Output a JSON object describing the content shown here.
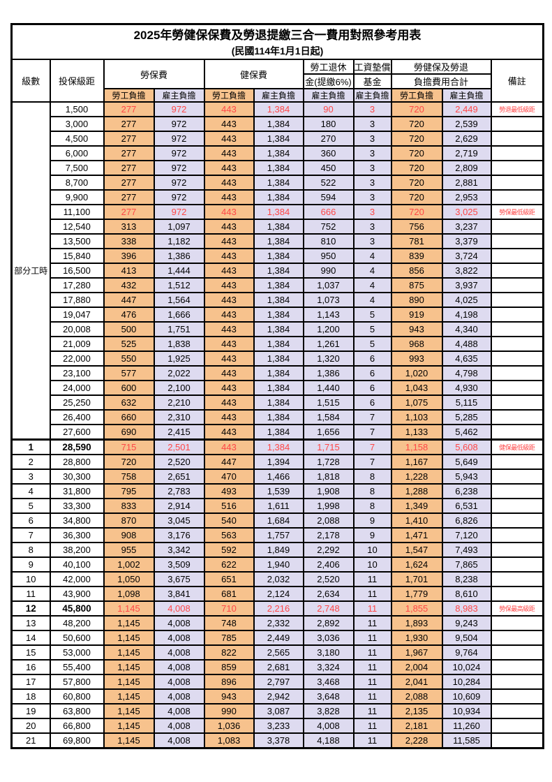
{
  "title": "2025年勞健保保費及勞退提繳三合一費用對照參考用表",
  "subtitle": "(民國114年1月1日起)",
  "colors": {
    "employee_bg": "#F7C28D",
    "employer_bg": "#DEDBF0",
    "highlight_text": "#FF4747",
    "border": "#000000"
  },
  "header": {
    "level": "級數",
    "bracket": "投保級距",
    "labor_group": "勞保費",
    "health_group": "健保費",
    "pension_line1": "勞工退休",
    "pension_line2": "金(提繳6%)",
    "arrears_line1": "工資墊償",
    "arrears_line2": "基金",
    "total_line1": "勞健保及勞退",
    "total_line2": "負擔費用合計",
    "employee": "勞工負擔",
    "employer": "雇主負擔",
    "remark": "備註"
  },
  "part_time_label": "部分工時",
  "part_time_span": 23,
  "rows": [
    {
      "level": "",
      "bracket": "1,500",
      "values": [
        "277",
        "972",
        "443",
        "1,384",
        "90",
        "3",
        "720",
        "2,449"
      ],
      "remark": "勞退最低級距",
      "highlight": true,
      "bold": false,
      "thick_top": false
    },
    {
      "level": "",
      "bracket": "3,000",
      "values": [
        "277",
        "972",
        "443",
        "1,384",
        "180",
        "3",
        "720",
        "2,539"
      ],
      "remark": "",
      "highlight": false,
      "bold": false,
      "thick_top": false
    },
    {
      "level": "",
      "bracket": "4,500",
      "values": [
        "277",
        "972",
        "443",
        "1,384",
        "270",
        "3",
        "720",
        "2,629"
      ],
      "remark": "",
      "highlight": false,
      "bold": false,
      "thick_top": false
    },
    {
      "level": "",
      "bracket": "6,000",
      "values": [
        "277",
        "972",
        "443",
        "1,384",
        "360",
        "3",
        "720",
        "2,719"
      ],
      "remark": "",
      "highlight": false,
      "bold": false,
      "thick_top": false
    },
    {
      "level": "",
      "bracket": "7,500",
      "values": [
        "277",
        "972",
        "443",
        "1,384",
        "450",
        "3",
        "720",
        "2,809"
      ],
      "remark": "",
      "highlight": false,
      "bold": false,
      "thick_top": false
    },
    {
      "level": "",
      "bracket": "8,700",
      "values": [
        "277",
        "972",
        "443",
        "1,384",
        "522",
        "3",
        "720",
        "2,881"
      ],
      "remark": "",
      "highlight": false,
      "bold": false,
      "thick_top": false
    },
    {
      "level": "",
      "bracket": "9,900",
      "values": [
        "277",
        "972",
        "443",
        "1,384",
        "594",
        "3",
        "720",
        "2,953"
      ],
      "remark": "",
      "highlight": false,
      "bold": false,
      "thick_top": false
    },
    {
      "level": "",
      "bracket": "11,100",
      "values": [
        "277",
        "972",
        "443",
        "1,384",
        "666",
        "3",
        "720",
        "3,025"
      ],
      "remark": "勞保最低級距",
      "highlight": true,
      "bold": false,
      "thick_top": false
    },
    {
      "level": "",
      "bracket": "12,540",
      "values": [
        "313",
        "1,097",
        "443",
        "1,384",
        "752",
        "3",
        "756",
        "3,237"
      ],
      "remark": "",
      "highlight": false,
      "bold": false,
      "thick_top": false
    },
    {
      "level": "",
      "bracket": "13,500",
      "values": [
        "338",
        "1,182",
        "443",
        "1,384",
        "810",
        "3",
        "781",
        "3,379"
      ],
      "remark": "",
      "highlight": false,
      "bold": false,
      "thick_top": false
    },
    {
      "level": "",
      "bracket": "15,840",
      "values": [
        "396",
        "1,386",
        "443",
        "1,384",
        "950",
        "4",
        "839",
        "3,724"
      ],
      "remark": "",
      "highlight": false,
      "bold": false,
      "thick_top": false
    },
    {
      "level": "",
      "bracket": "16,500",
      "values": [
        "413",
        "1,444",
        "443",
        "1,384",
        "990",
        "4",
        "856",
        "3,822"
      ],
      "remark": "",
      "highlight": false,
      "bold": false,
      "thick_top": false
    },
    {
      "level": "",
      "bracket": "17,280",
      "values": [
        "432",
        "1,512",
        "443",
        "1,384",
        "1,037",
        "4",
        "875",
        "3,937"
      ],
      "remark": "",
      "highlight": false,
      "bold": false,
      "thick_top": false
    },
    {
      "level": "",
      "bracket": "17,880",
      "values": [
        "447",
        "1,564",
        "443",
        "1,384",
        "1,073",
        "4",
        "890",
        "4,025"
      ],
      "remark": "",
      "highlight": false,
      "bold": false,
      "thick_top": false
    },
    {
      "level": "",
      "bracket": "19,047",
      "values": [
        "476",
        "1,666",
        "443",
        "1,384",
        "1,143",
        "5",
        "919",
        "4,198"
      ],
      "remark": "",
      "highlight": false,
      "bold": false,
      "thick_top": false
    },
    {
      "level": "",
      "bracket": "20,008",
      "values": [
        "500",
        "1,751",
        "443",
        "1,384",
        "1,200",
        "5",
        "943",
        "4,340"
      ],
      "remark": "",
      "highlight": false,
      "bold": false,
      "thick_top": false
    },
    {
      "level": "",
      "bracket": "21,009",
      "values": [
        "525",
        "1,838",
        "443",
        "1,384",
        "1,261",
        "5",
        "968",
        "4,488"
      ],
      "remark": "",
      "highlight": false,
      "bold": false,
      "thick_top": false
    },
    {
      "level": "",
      "bracket": "22,000",
      "values": [
        "550",
        "1,925",
        "443",
        "1,384",
        "1,320",
        "6",
        "993",
        "4,635"
      ],
      "remark": "",
      "highlight": false,
      "bold": false,
      "thick_top": false
    },
    {
      "level": "",
      "bracket": "23,100",
      "values": [
        "577",
        "2,022",
        "443",
        "1,384",
        "1,386",
        "6",
        "1,020",
        "4,798"
      ],
      "remark": "",
      "highlight": false,
      "bold": false,
      "thick_top": false
    },
    {
      "level": "",
      "bracket": "24,000",
      "values": [
        "600",
        "2,100",
        "443",
        "1,384",
        "1,440",
        "6",
        "1,043",
        "4,930"
      ],
      "remark": "",
      "highlight": false,
      "bold": false,
      "thick_top": false
    },
    {
      "level": "",
      "bracket": "25,250",
      "values": [
        "632",
        "2,210",
        "443",
        "1,384",
        "1,515",
        "6",
        "1,075",
        "5,115"
      ],
      "remark": "",
      "highlight": false,
      "bold": false,
      "thick_top": false
    },
    {
      "level": "",
      "bracket": "26,400",
      "values": [
        "660",
        "2,310",
        "443",
        "1,384",
        "1,584",
        "7",
        "1,103",
        "5,285"
      ],
      "remark": "",
      "highlight": false,
      "bold": false,
      "thick_top": false
    },
    {
      "level": "",
      "bracket": "27,600",
      "values": [
        "690",
        "2,415",
        "443",
        "1,384",
        "1,656",
        "7",
        "1,133",
        "5,462"
      ],
      "remark": "",
      "highlight": false,
      "bold": false,
      "thick_top": false
    },
    {
      "level": "1",
      "bracket": "28,590",
      "values": [
        "715",
        "2,501",
        "443",
        "1,384",
        "1,715",
        "7",
        "1,158",
        "5,608"
      ],
      "remark": "健保最低級距",
      "highlight": true,
      "bold": true,
      "thick_top": true
    },
    {
      "level": "2",
      "bracket": "28,800",
      "values": [
        "720",
        "2,520",
        "447",
        "1,394",
        "1,728",
        "7",
        "1,167",
        "5,649"
      ],
      "remark": "",
      "highlight": false,
      "bold": false,
      "thick_top": false
    },
    {
      "level": "3",
      "bracket": "30,300",
      "values": [
        "758",
        "2,651",
        "470",
        "1,466",
        "1,818",
        "8",
        "1,228",
        "5,943"
      ],
      "remark": "",
      "highlight": false,
      "bold": false,
      "thick_top": false
    },
    {
      "level": "4",
      "bracket": "31,800",
      "values": [
        "795",
        "2,783",
        "493",
        "1,539",
        "1,908",
        "8",
        "1,288",
        "6,238"
      ],
      "remark": "",
      "highlight": false,
      "bold": false,
      "thick_top": false
    },
    {
      "level": "5",
      "bracket": "33,300",
      "values": [
        "833",
        "2,914",
        "516",
        "1,611",
        "1,998",
        "8",
        "1,349",
        "6,531"
      ],
      "remark": "",
      "highlight": false,
      "bold": false,
      "thick_top": false
    },
    {
      "level": "6",
      "bracket": "34,800",
      "values": [
        "870",
        "3,045",
        "540",
        "1,684",
        "2,088",
        "9",
        "1,410",
        "6,826"
      ],
      "remark": "",
      "highlight": false,
      "bold": false,
      "thick_top": false
    },
    {
      "level": "7",
      "bracket": "36,300",
      "values": [
        "908",
        "3,176",
        "563",
        "1,757",
        "2,178",
        "9",
        "1,471",
        "7,120"
      ],
      "remark": "",
      "highlight": false,
      "bold": false,
      "thick_top": false
    },
    {
      "level": "8",
      "bracket": "38,200",
      "values": [
        "955",
        "3,342",
        "592",
        "1,849",
        "2,292",
        "10",
        "1,547",
        "7,493"
      ],
      "remark": "",
      "highlight": false,
      "bold": false,
      "thick_top": false
    },
    {
      "level": "9",
      "bracket": "40,100",
      "values": [
        "1,002",
        "3,509",
        "622",
        "1,940",
        "2,406",
        "10",
        "1,624",
        "7,865"
      ],
      "remark": "",
      "highlight": false,
      "bold": false,
      "thick_top": false
    },
    {
      "level": "10",
      "bracket": "42,000",
      "values": [
        "1,050",
        "3,675",
        "651",
        "2,032",
        "2,520",
        "11",
        "1,701",
        "8,238"
      ],
      "remark": "",
      "highlight": false,
      "bold": false,
      "thick_top": false
    },
    {
      "level": "11",
      "bracket": "43,900",
      "values": [
        "1,098",
        "3,841",
        "681",
        "2,124",
        "2,634",
        "11",
        "1,779",
        "8,610"
      ],
      "remark": "",
      "highlight": false,
      "bold": false,
      "thick_top": false
    },
    {
      "level": "12",
      "bracket": "45,800",
      "values": [
        "1,145",
        "4,008",
        "710",
        "2,216",
        "2,748",
        "11",
        "1,855",
        "8,983"
      ],
      "remark": "勞保最高級距",
      "highlight": true,
      "bold": true,
      "thick_top": false
    },
    {
      "level": "13",
      "bracket": "48,200",
      "values": [
        "1,145",
        "4,008",
        "748",
        "2,332",
        "2,892",
        "11",
        "1,893",
        "9,243"
      ],
      "remark": "",
      "highlight": false,
      "bold": false,
      "thick_top": false
    },
    {
      "level": "14",
      "bracket": "50,600",
      "values": [
        "1,145",
        "4,008",
        "785",
        "2,449",
        "3,036",
        "11",
        "1,930",
        "9,504"
      ],
      "remark": "",
      "highlight": false,
      "bold": false,
      "thick_top": false
    },
    {
      "level": "15",
      "bracket": "53,000",
      "values": [
        "1,145",
        "4,008",
        "822",
        "2,565",
        "3,180",
        "11",
        "1,967",
        "9,764"
      ],
      "remark": "",
      "highlight": false,
      "bold": false,
      "thick_top": false
    },
    {
      "level": "16",
      "bracket": "55,400",
      "values": [
        "1,145",
        "4,008",
        "859",
        "2,681",
        "3,324",
        "11",
        "2,004",
        "10,024"
      ],
      "remark": "",
      "highlight": false,
      "bold": false,
      "thick_top": false
    },
    {
      "level": "17",
      "bracket": "57,800",
      "values": [
        "1,145",
        "4,008",
        "896",
        "2,797",
        "3,468",
        "11",
        "2,041",
        "10,284"
      ],
      "remark": "",
      "highlight": false,
      "bold": false,
      "thick_top": false
    },
    {
      "level": "18",
      "bracket": "60,800",
      "values": [
        "1,145",
        "4,008",
        "943",
        "2,942",
        "3,648",
        "11",
        "2,088",
        "10,609"
      ],
      "remark": "",
      "highlight": false,
      "bold": false,
      "thick_top": false
    },
    {
      "level": "19",
      "bracket": "63,800",
      "values": [
        "1,145",
        "4,008",
        "990",
        "3,087",
        "3,828",
        "11",
        "2,135",
        "10,934"
      ],
      "remark": "",
      "highlight": false,
      "bold": false,
      "thick_top": false
    },
    {
      "level": "20",
      "bracket": "66,800",
      "values": [
        "1,145",
        "4,008",
        "1,036",
        "3,233",
        "4,008",
        "11",
        "2,181",
        "11,260"
      ],
      "remark": "",
      "highlight": false,
      "bold": false,
      "thick_top": false
    },
    {
      "level": "21",
      "bracket": "69,800",
      "values": [
        "1,145",
        "4,008",
        "1,083",
        "3,378",
        "4,188",
        "11",
        "2,228",
        "11,585"
      ],
      "remark": "",
      "highlight": false,
      "bold": false,
      "thick_top": false
    }
  ]
}
